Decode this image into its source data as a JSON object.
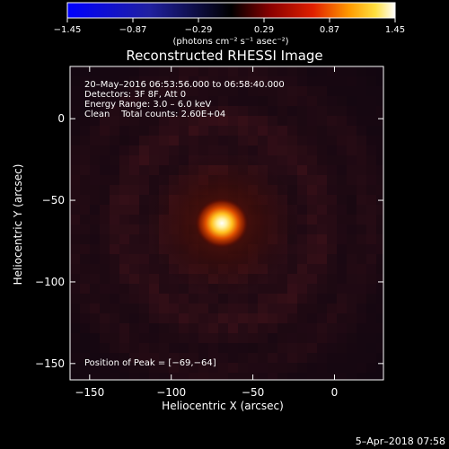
{
  "chart_data": {
    "type": "heatmap",
    "title": "Reconstructed RHESSI Image",
    "xlabel": "Heliocentric X (arcsec)",
    "ylabel": "Heliocentric Y (arcsec)",
    "xlim": [
      -162,
      30
    ],
    "ylim": [
      -160,
      32
    ],
    "x_ticks": [
      -150,
      -100,
      -50,
      0
    ],
    "y_ticks": [
      0,
      -50,
      -100,
      -150
    ],
    "x_tick_labels": [
      "−150",
      "−100",
      "−50",
      "0"
    ],
    "y_tick_labels": [
      "0",
      "−50",
      "−100",
      "−150"
    ],
    "colorbar": {
      "min": -1.45,
      "max": 1.45,
      "ticks": [
        -1.45,
        -0.87,
        -0.29,
        0.29,
        0.87,
        1.45
      ],
      "tick_labels": [
        "−1.45",
        "−0.87",
        "−0.29",
        "0.29",
        "0.87",
        "1.45"
      ],
      "unit_label": "(photons cm⁻² s⁻¹ asec⁻²)",
      "colormap": "blue-black-red-yellow-white"
    },
    "info_lines": [
      "20–May–2016 06:53:56.000 to 06:58:40.000",
      "Detectors: 3F 8F, Att 0",
      "Energy Range: 3.0 – 6.0 keV",
      "Clean    Total counts: 2.60E+04"
    ],
    "peak_label": "Position of Peak = [−69,−64]",
    "peak": {
      "x": -69,
      "y": -64,
      "value": 1.45
    },
    "grid": false
  },
  "footer": {
    "timestamp": "5–Apr–2018 07:58"
  }
}
